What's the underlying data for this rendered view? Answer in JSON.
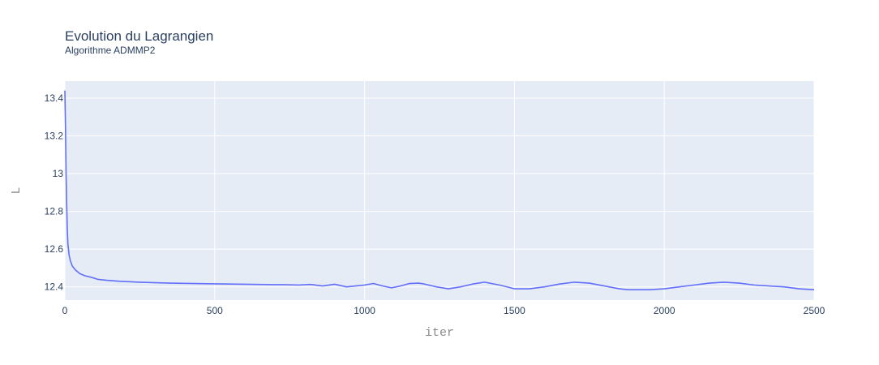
{
  "chart_data": {
    "type": "line",
    "title": "Evolution du Lagrangien",
    "subtitle": "Algorithme ADMMP2",
    "xlabel": "iter",
    "ylabel": "L",
    "xlim": [
      0,
      2500
    ],
    "ylim": [
      12.33,
      13.49
    ],
    "xticks": [
      0,
      500,
      1000,
      1500,
      2000,
      2500
    ],
    "xtick_labels": [
      "0",
      "500",
      "1000",
      "1500",
      "2000",
      "2500"
    ],
    "yticks": [
      12.4,
      12.6,
      12.8,
      13.0,
      13.2,
      13.4
    ],
    "ytick_labels": [
      "12.4",
      "12.6",
      "12.8",
      "13",
      "13.2",
      "13.4"
    ],
    "grid": true,
    "colors": {
      "plot_bg": "#e5ecf6",
      "grid": "#ffffff",
      "line": "#636efa"
    },
    "series": [
      {
        "x": [
          0,
          2,
          4,
          6,
          8,
          10,
          14,
          18,
          25,
          35,
          50,
          65,
          90,
          110,
          140,
          180,
          250,
          350,
          500,
          600,
          700,
          730,
          780,
          820,
          860,
          900,
          940,
          970,
          1000,
          1030,
          1060,
          1090,
          1120,
          1150,
          1180,
          1200,
          1240,
          1280,
          1320,
          1360,
          1400,
          1450,
          1500,
          1550,
          1600,
          1650,
          1700,
          1750,
          1800,
          1850,
          1880,
          1950,
          2000,
          2050,
          2100,
          2150,
          2200,
          2250,
          2300,
          2350,
          2400,
          2450,
          2500
        ],
        "y": [
          13.44,
          13.25,
          13.0,
          12.84,
          12.71,
          12.63,
          12.57,
          12.54,
          12.51,
          12.49,
          12.47,
          12.46,
          12.45,
          12.44,
          12.435,
          12.43,
          12.425,
          12.42,
          12.416,
          12.414,
          12.412,
          12.412,
          12.41,
          12.413,
          12.405,
          12.414,
          12.4,
          12.405,
          12.41,
          12.418,
          12.405,
          12.395,
          12.405,
          12.418,
          12.42,
          12.415,
          12.4,
          12.39,
          12.4,
          12.415,
          12.425,
          12.41,
          12.39,
          12.39,
          12.4,
          12.415,
          12.425,
          12.42,
          12.405,
          12.39,
          12.385,
          12.385,
          12.39,
          12.4,
          12.41,
          12.42,
          12.425,
          12.42,
          12.41,
          12.405,
          12.4,
          12.39,
          12.385
        ]
      }
    ]
  }
}
